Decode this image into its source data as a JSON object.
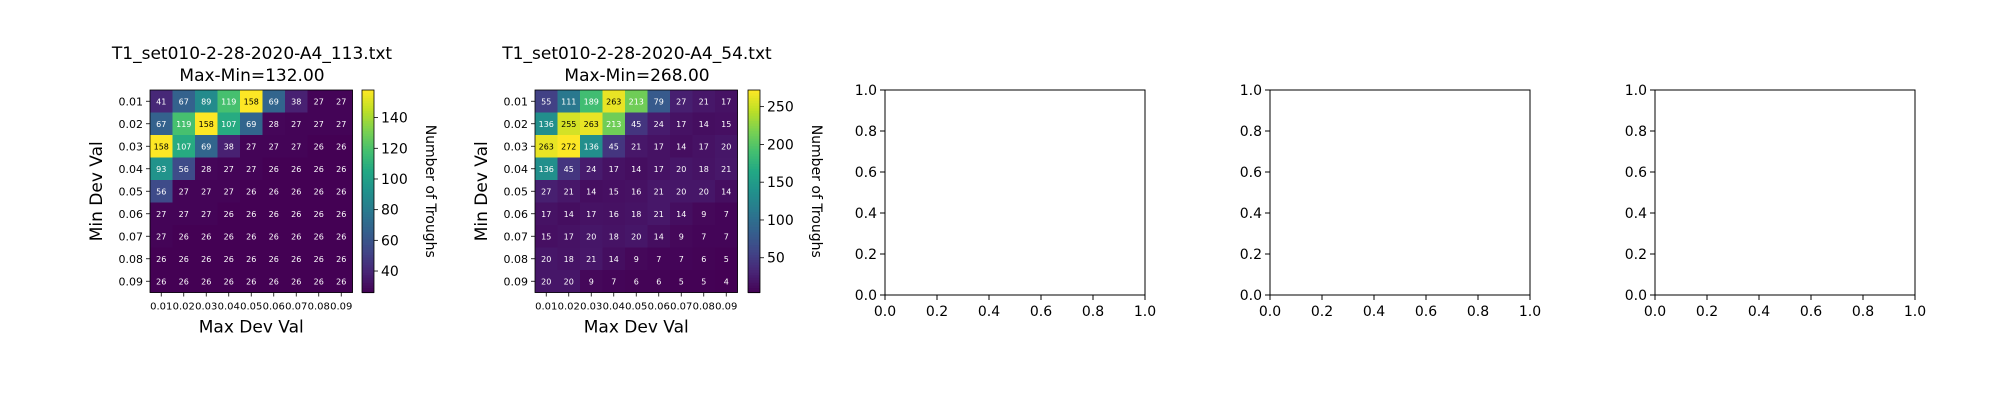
{
  "chart_data": [
    {
      "type": "heatmap",
      "title": "T1_set010-2-28-2020-A4_113.txt",
      "subtitle": "Max-Min=132.00",
      "xlabel": "Max Dev Val",
      "ylabel": "Min Dev Val",
      "x_categories": [
        "0.01",
        "0.02",
        "0.03",
        "0.04",
        "0.05",
        "0.06",
        "0.07",
        "0.08",
        "0.09"
      ],
      "y_categories": [
        "0.01",
        "0.02",
        "0.03",
        "0.04",
        "0.05",
        "0.06",
        "0.07",
        "0.08",
        "0.09"
      ],
      "values": [
        [
          41,
          67,
          89,
          119,
          158,
          69,
          38,
          27,
          27
        ],
        [
          67,
          119,
          158,
          107,
          69,
          28,
          27,
          27,
          27
        ],
        [
          158,
          107,
          69,
          38,
          27,
          27,
          27,
          26,
          26
        ],
        [
          93,
          56,
          28,
          27,
          27,
          26,
          26,
          26,
          26
        ],
        [
          56,
          27,
          27,
          27,
          26,
          26,
          26,
          26,
          26
        ],
        [
          27,
          27,
          27,
          26,
          26,
          26,
          26,
          26,
          26
        ],
        [
          27,
          26,
          26,
          26,
          26,
          26,
          26,
          26,
          26
        ],
        [
          26,
          26,
          26,
          26,
          26,
          26,
          26,
          26,
          26
        ],
        [
          26,
          26,
          26,
          26,
          26,
          26,
          26,
          26,
          26
        ]
      ],
      "colorbar": {
        "label": "Number of Troughs",
        "range": [
          26,
          158
        ],
        "ticks": [
          40,
          60,
          80,
          100,
          120,
          140
        ],
        "colormap": "viridis"
      }
    },
    {
      "type": "heatmap",
      "title": "T1_set010-2-28-2020-A4_54.txt",
      "subtitle": "Max-Min=268.00",
      "xlabel": "Max Dev Val",
      "ylabel": "Min Dev Val",
      "x_categories": [
        "0.01",
        "0.02",
        "0.03",
        "0.04",
        "0.05",
        "0.06",
        "0.07",
        "0.08",
        "0.09"
      ],
      "y_categories": [
        "0.01",
        "0.02",
        "0.03",
        "0.04",
        "0.05",
        "0.06",
        "0.07",
        "0.08",
        "0.09"
      ],
      "values": [
        [
          55,
          111,
          189,
          263,
          213,
          79,
          27,
          21,
          17
        ],
        [
          136,
          255,
          263,
          213,
          45,
          24,
          17,
          14,
          15
        ],
        [
          263,
          272,
          136,
          45,
          21,
          17,
          14,
          17,
          20
        ],
        [
          136,
          45,
          24,
          17,
          14,
          17,
          20,
          18,
          21
        ],
        [
          27,
          21,
          14,
          15,
          16,
          21,
          20,
          20,
          14
        ],
        [
          17,
          14,
          17,
          16,
          18,
          21,
          14,
          9,
          7
        ],
        [
          15,
          17,
          20,
          18,
          20,
          14,
          9,
          7,
          7
        ],
        [
          20,
          18,
          21,
          14,
          9,
          7,
          7,
          6,
          5
        ],
        [
          20,
          20,
          9,
          7,
          6,
          6,
          5,
          5,
          4
        ]
      ],
      "colorbar": {
        "label": "Number of Troughs",
        "range": [
          4,
          272
        ],
        "ticks": [
          50,
          100,
          150,
          200,
          250
        ],
        "colormap": "viridis"
      }
    },
    {
      "type": "scatter",
      "title": "",
      "xlim": [
        0,
        1
      ],
      "ylim": [
        0,
        1
      ],
      "x_ticks": [
        "0.0",
        "0.2",
        "0.4",
        "0.6",
        "0.8",
        "1.0"
      ],
      "y_ticks": [
        "0.0",
        "0.2",
        "0.4",
        "0.6",
        "0.8",
        "1.0"
      ],
      "series": []
    },
    {
      "type": "scatter",
      "title": "",
      "xlim": [
        0,
        1
      ],
      "ylim": [
        0,
        1
      ],
      "x_ticks": [
        "0.0",
        "0.2",
        "0.4",
        "0.6",
        "0.8",
        "1.0"
      ],
      "y_ticks": [
        "0.0",
        "0.2",
        "0.4",
        "0.6",
        "0.8",
        "1.0"
      ],
      "series": []
    },
    {
      "type": "scatter",
      "title": "",
      "xlim": [
        0,
        1
      ],
      "ylim": [
        0,
        1
      ],
      "x_ticks": [
        "0.0",
        "0.2",
        "0.4",
        "0.6",
        "0.8",
        "1.0"
      ],
      "y_ticks": [
        "0.0",
        "0.2",
        "0.4",
        "0.6",
        "0.8",
        "1.0"
      ],
      "series": []
    }
  ]
}
